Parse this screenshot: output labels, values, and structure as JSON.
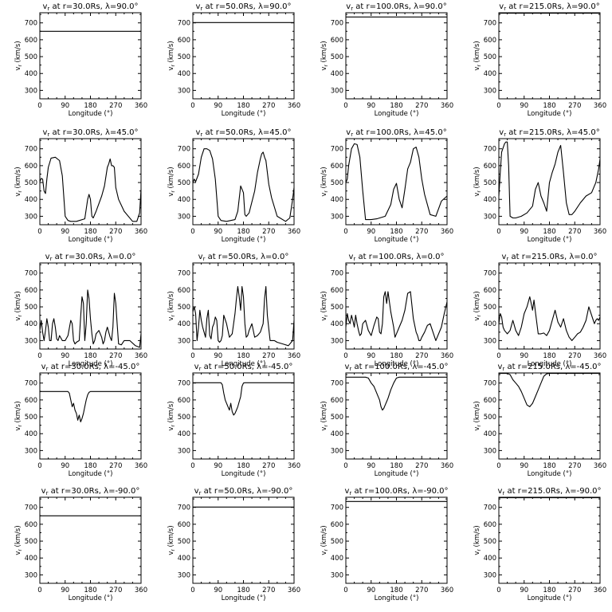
{
  "chart_data": {
    "type": "line",
    "x_label": "Longitude (°)",
    "y_label": "vr (km/s)",
    "x_ticks": [
      0,
      90,
      180,
      270,
      360
    ],
    "y_ticks": [
      300,
      400,
      500,
      600,
      700
    ],
    "xlim": [
      0,
      360
    ],
    "ylim": [
      250,
      760
    ],
    "panels": [
      {
        "title": "vr at r=30.0Rs, λ=90.0°",
        "x": [
          0,
          360
        ],
        "y": [
          650,
          650
        ]
      },
      {
        "title": "vr at r=50.0Rs, λ=90.0°",
        "x": [
          0,
          360
        ],
        "y": [
          702,
          702
        ]
      },
      {
        "title": "vr at r=100.0Rs, λ=90.0°",
        "x": [
          0,
          360
        ],
        "y": [
          735,
          735
        ]
      },
      {
        "title": "vr at r=215.0Rs, λ=90.0°",
        "x": [
          0,
          360
        ],
        "y": [
          757,
          757
        ]
      },
      {
        "title": "vr at r=30.0Rs, λ=45.0°",
        "x": [
          0,
          5,
          10,
          15,
          20,
          25,
          30,
          40,
          55,
          70,
          80,
          90,
          100,
          110,
          130,
          160,
          170,
          175,
          180,
          185,
          190,
          200,
          220,
          230,
          240,
          245,
          250,
          255,
          260,
          265,
          270,
          280,
          300,
          330,
          345,
          355,
          360
        ],
        "y": [
          505,
          525,
          520,
          450,
          435,
          520,
          590,
          645,
          650,
          630,
          540,
          300,
          275,
          270,
          270,
          285,
          400,
          430,
          400,
          300,
          290,
          330,
          420,
          480,
          590,
          610,
          640,
          600,
          600,
          590,
          470,
          400,
          330,
          270,
          270,
          320,
          460
        ]
      },
      {
        "title": "vr at r=50.0Rs, λ=45.0°",
        "x": [
          0,
          5,
          10,
          20,
          30,
          40,
          50,
          60,
          70,
          80,
          90,
          100,
          120,
          150,
          160,
          170,
          180,
          185,
          190,
          200,
          220,
          230,
          240,
          245,
          250,
          255,
          260,
          270,
          280,
          300,
          330,
          345,
          355,
          360
        ],
        "y": [
          500,
          520,
          505,
          550,
          650,
          700,
          700,
          690,
          640,
          520,
          300,
          275,
          270,
          280,
          330,
          480,
          440,
          310,
          300,
          320,
          450,
          560,
          640,
          670,
          680,
          650,
          630,
          490,
          410,
          300,
          270,
          290,
          400,
          470
        ]
      },
      {
        "title": "vr at r=100.0Rs, λ=45.0°",
        "x": [
          0,
          5,
          10,
          20,
          30,
          40,
          50,
          60,
          70,
          80,
          90,
          110,
          140,
          160,
          170,
          180,
          190,
          200,
          210,
          220,
          230,
          240,
          250,
          260,
          270,
          280,
          300,
          320,
          340,
          360
        ],
        "y": [
          500,
          520,
          600,
          700,
          730,
          725,
          650,
          450,
          280,
          280,
          280,
          285,
          300,
          370,
          460,
          495,
          400,
          350,
          460,
          580,
          620,
          700,
          710,
          650,
          520,
          430,
          310,
          300,
          390,
          420
        ]
      },
      {
        "title": "vr at r=215.0Rs, λ=45.0°",
        "x": [
          0,
          5,
          10,
          20,
          25,
          30,
          35,
          40,
          50,
          60,
          80,
          100,
          120,
          130,
          140,
          150,
          160,
          170,
          180,
          190,
          200,
          210,
          220,
          230,
          240,
          250,
          260,
          270,
          290,
          310,
          330,
          345,
          355,
          360
        ],
        "y": [
          420,
          560,
          680,
          730,
          740,
          740,
          600,
          300,
          290,
          290,
          300,
          320,
          360,
          460,
          500,
          420,
          380,
          330,
          500,
          560,
          610,
          680,
          720,
          560,
          380,
          310,
          310,
          330,
          380,
          420,
          440,
          500,
          580,
          640
        ]
      },
      {
        "title": "vr at r=30.0Rs, λ=0.0°",
        "x": [
          0,
          5,
          10,
          15,
          20,
          25,
          30,
          35,
          40,
          45,
          50,
          55,
          60,
          65,
          70,
          80,
          90,
          100,
          110,
          115,
          120,
          125,
          130,
          140,
          145,
          150,
          155,
          160,
          165,
          170,
          175,
          180,
          185,
          190,
          195,
          200,
          210,
          220,
          225,
          230,
          235,
          240,
          250,
          255,
          260,
          265,
          270,
          275,
          280,
          290,
          300,
          320,
          340,
          355,
          360
        ],
        "y": [
          360,
          420,
          350,
          300,
          360,
          430,
          380,
          300,
          300,
          400,
          430,
          380,
          310,
          300,
          330,
          300,
          300,
          330,
          420,
          400,
          300,
          280,
          290,
          300,
          440,
          560,
          520,
          300,
          400,
          600,
          550,
          430,
          340,
          280,
          300,
          340,
          360,
          320,
          280,
          300,
          350,
          380,
          320,
          300,
          380,
          580,
          520,
          400,
          280,
          275,
          300,
          300,
          270,
          260,
          340
        ]
      },
      {
        "title": "vr at r=50.0Rs, λ=0.0°",
        "x": [
          0,
          5,
          10,
          15,
          20,
          25,
          30,
          35,
          40,
          45,
          50,
          55,
          60,
          65,
          70,
          75,
          80,
          85,
          90,
          95,
          100,
          105,
          110,
          120,
          130,
          140,
          150,
          155,
          160,
          165,
          170,
          175,
          180,
          185,
          190,
          195,
          200,
          210,
          220,
          230,
          240,
          250,
          255,
          260,
          265,
          270,
          275,
          280,
          290,
          300,
          320,
          340,
          355,
          360
        ],
        "y": [
          470,
          500,
          460,
          300,
          380,
          480,
          420,
          380,
          350,
          320,
          430,
          480,
          330,
          310,
          380,
          400,
          440,
          420,
          300,
          290,
          300,
          330,
          450,
          400,
          320,
          340,
          460,
          550,
          620,
          560,
          480,
          620,
          560,
          400,
          320,
          330,
          360,
          400,
          320,
          330,
          350,
          400,
          550,
          620,
          450,
          370,
          300,
          300,
          300,
          290,
          280,
          270,
          300,
          420
        ]
      },
      {
        "title": "vr at r=100.0Rs, λ=0.0°",
        "x": [
          0,
          5,
          10,
          15,
          20,
          25,
          30,
          35,
          40,
          45,
          50,
          55,
          60,
          70,
          80,
          90,
          100,
          110,
          115,
          120,
          125,
          130,
          135,
          140,
          145,
          150,
          160,
          170,
          175,
          180,
          190,
          200,
          210,
          220,
          230,
          240,
          250,
          255,
          260,
          265,
          270,
          280,
          290,
          300,
          320,
          340,
          350,
          360
        ],
        "y": [
          380,
          460,
          420,
          400,
          450,
          420,
          380,
          450,
          400,
          360,
          330,
          340,
          400,
          420,
          360,
          330,
          390,
          440,
          430,
          350,
          340,
          400,
          560,
          590,
          520,
          590,
          470,
          380,
          320,
          340,
          380,
          420,
          480,
          580,
          590,
          430,
          350,
          330,
          300,
          300,
          320,
          350,
          390,
          400,
          300,
          380,
          460,
          530
        ]
      },
      {
        "title": "vr at r=215.0Rs, λ=0.0°",
        "x": [
          0,
          5,
          10,
          15,
          20,
          30,
          40,
          50,
          60,
          70,
          80,
          90,
          100,
          110,
          115,
          120,
          125,
          130,
          140,
          150,
          160,
          170,
          180,
          190,
          200,
          210,
          220,
          230,
          240,
          250,
          260,
          270,
          280,
          290,
          300,
          310,
          320,
          330,
          340,
          345,
          350,
          355,
          360
        ],
        "y": [
          400,
          460,
          440,
          380,
          360,
          340,
          360,
          420,
          360,
          330,
          380,
          460,
          500,
          560,
          520,
          480,
          540,
          470,
          340,
          340,
          345,
          330,
          360,
          420,
          480,
          410,
          380,
          430,
          360,
          320,
          300,
          320,
          340,
          350,
          380,
          420,
          500,
          450,
          400,
          420,
          430,
          420,
          440
        ]
      },
      {
        "title": "vr at r=30.0Rs, λ=-45.0°",
        "x": [
          0,
          100,
          105,
          110,
          115,
          120,
          125,
          130,
          135,
          140,
          145,
          150,
          155,
          160,
          165,
          170,
          175,
          180,
          185,
          190,
          360
        ],
        "y": [
          650,
          650,
          640,
          600,
          560,
          580,
          540,
          520,
          480,
          510,
          470,
          490,
          520,
          560,
          600,
          630,
          645,
          650,
          650,
          650,
          650
        ]
      },
      {
        "title": "vr at r=50.0Rs, λ=-45.0°",
        "x": [
          0,
          100,
          105,
          110,
          115,
          120,
          125,
          130,
          135,
          140,
          145,
          150,
          155,
          160,
          170,
          175,
          180,
          185,
          190,
          200,
          360
        ],
        "y": [
          702,
          702,
          690,
          640,
          600,
          580,
          560,
          540,
          580,
          530,
          510,
          520,
          540,
          560,
          620,
          680,
          700,
          702,
          702,
          702,
          702
        ]
      },
      {
        "title": "vr at r=100.0Rs, λ=-45.0°",
        "x": [
          0,
          70,
          80,
          90,
          100,
          110,
          120,
          125,
          130,
          135,
          140,
          145,
          150,
          160,
          170,
          180,
          190,
          200,
          360
        ],
        "y": [
          735,
          735,
          730,
          700,
          680,
          640,
          600,
          560,
          540,
          550,
          570,
          590,
          610,
          660,
          700,
          730,
          735,
          735,
          735
        ]
      },
      {
        "title": "vr at r=215.0Rs, λ=-45.0°",
        "x": [
          0,
          30,
          40,
          50,
          60,
          70,
          80,
          90,
          100,
          110,
          120,
          130,
          140,
          150,
          160,
          170,
          180,
          190,
          360
        ],
        "y": [
          757,
          757,
          750,
          720,
          700,
          680,
          650,
          610,
          570,
          560,
          580,
          620,
          660,
          700,
          740,
          755,
          757,
          757,
          757
        ]
      },
      {
        "title": "vr at r=30.0Rs, λ=-90.0°",
        "x": [
          0,
          360
        ],
        "y": [
          650,
          650
        ]
      },
      {
        "title": "vr at r=50.0Rs, λ=-90.0°",
        "x": [
          0,
          360
        ],
        "y": [
          702,
          702
        ]
      },
      {
        "title": "vr at r=100.0Rs, λ=-90.0°",
        "x": [
          0,
          360
        ],
        "y": [
          735,
          735
        ]
      },
      {
        "title": "vr at r=215.0Rs, λ=-90.0°",
        "x": [
          0,
          360
        ],
        "y": [
          757,
          757
        ]
      }
    ]
  }
}
